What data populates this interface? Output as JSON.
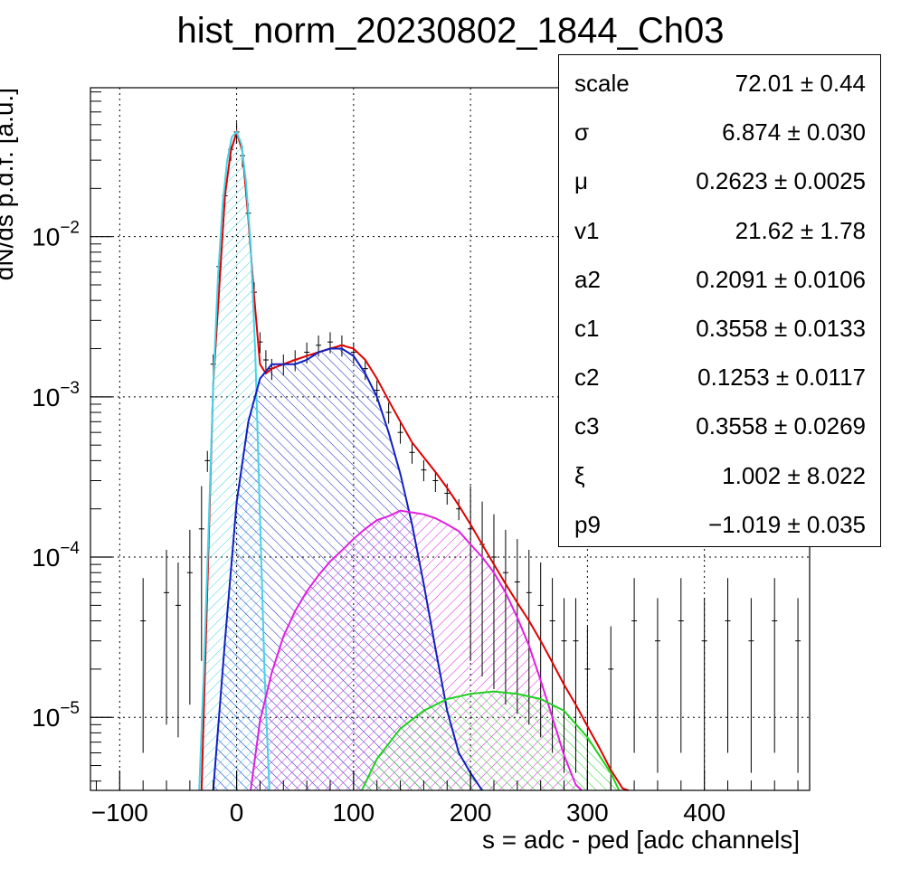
{
  "chart_data": {
    "type": "histogram",
    "title": "hist_norm_20230802_1844_Ch03",
    "xlabel": "s = adc - ped [adc channels]",
    "ylabel": "dN/ds p.d.f. [a.u.]",
    "xlim": [
      -125,
      490
    ],
    "ylim": [
      3.5e-06,
      0.085
    ],
    "yscale": "log",
    "grid": true,
    "x_ticks": [
      "−100",
      "0",
      "100",
      "200",
      "300",
      "400"
    ],
    "x_tick_values": [
      -100,
      0,
      100,
      200,
      300,
      400
    ],
    "y_ticks": [
      {
        "value": 1e-05,
        "base": "10",
        "exp": "−5"
      },
      {
        "value": 0.0001,
        "base": "10",
        "exp": "−4"
      },
      {
        "value": 0.001,
        "base": "10",
        "exp": "−3"
      },
      {
        "value": 0.01,
        "base": "10",
        "exp": "−2"
      }
    ],
    "histogram": {
      "color": "#000000",
      "x": [
        -80,
        -60,
        -50,
        -40,
        -30,
        -25,
        -20,
        -15,
        -10,
        -5,
        0,
        5,
        10,
        15,
        20,
        25,
        30,
        40,
        50,
        60,
        70,
        80,
        90,
        100,
        110,
        120,
        130,
        140,
        150,
        160,
        170,
        180,
        190,
        200,
        210,
        220,
        230,
        240,
        250,
        260,
        270,
        280,
        290,
        300,
        320,
        340,
        360,
        380,
        400,
        420,
        440,
        460,
        480
      ],
      "y": [
        4e-05,
        6e-05,
        5e-05,
        8e-05,
        0.00015,
        0.0004,
        0.0016,
        0.0065,
        0.018,
        0.035,
        0.045,
        0.032,
        0.014,
        0.0045,
        0.0022,
        0.0017,
        0.0015,
        0.0016,
        0.0017,
        0.0019,
        0.0021,
        0.0022,
        0.0021,
        0.0019,
        0.0015,
        0.0011,
        0.0008,
        0.0006,
        0.00045,
        0.00035,
        0.0003,
        0.00025,
        0.0002,
        0.00015,
        0.00012,
        0.0001,
        8e-05,
        7e-05,
        6e-05,
        5e-05,
        4e-05,
        3e-05,
        3e-05,
        2e-05,
        2e-05,
        4e-05,
        3e-05,
        4e-05,
        3e-05,
        4e-05,
        3e-05,
        4e-05,
        3e-05
      ]
    },
    "curves": [
      {
        "color": "#e00000",
        "hatch": false,
        "x": [
          -30,
          -20,
          -10,
          -5,
          0,
          5,
          10,
          15,
          20,
          25,
          30,
          40,
          50,
          60,
          70,
          80,
          90,
          100,
          110,
          120,
          130,
          140,
          150,
          160,
          170,
          180,
          190,
          200,
          210,
          220,
          230,
          240,
          250,
          260,
          270,
          280,
          290,
          300,
          310,
          320,
          330,
          335
        ],
        "y": [
          3.5e-06,
          0.0012,
          0.018,
          0.034,
          0.045,
          0.034,
          0.013,
          0.0042,
          0.0016,
          0.0014,
          0.0015,
          0.0016,
          0.0017,
          0.0018,
          0.0019,
          0.002,
          0.0021,
          0.002,
          0.0017,
          0.0013,
          0.00095,
          0.0007,
          0.00052,
          0.00042,
          0.00034,
          0.00027,
          0.00021,
          0.00016,
          0.00012,
          9e-05,
          6.8e-05,
          5.2e-05,
          4e-05,
          3e-05,
          2.2e-05,
          1.6e-05,
          1.2e-05,
          8.8e-06,
          6.5e-06,
          4.7e-06,
          3.6e-06,
          3.5e-06
        ]
      },
      {
        "color": "#45d4e6",
        "hatch": true,
        "x": [
          -32,
          -28,
          -24,
          -20,
          -16,
          -12,
          -8,
          -4,
          0,
          4,
          8,
          12,
          16,
          20,
          24,
          28
        ],
        "y": [
          3.5e-06,
          2e-05,
          0.00015,
          0.0012,
          0.0055,
          0.016,
          0.03,
          0.042,
          0.045,
          0.038,
          0.022,
          0.009,
          0.0018,
          0.00018,
          1.8e-05,
          3.5e-06
        ]
      },
      {
        "color": "#1020c0",
        "hatch": true,
        "x": [
          -20,
          -10,
          0,
          10,
          20,
          30,
          40,
          50,
          60,
          70,
          80,
          90,
          100,
          110,
          120,
          130,
          140,
          150,
          160,
          170,
          180,
          190,
          200,
          210
        ],
        "y": [
          3.5e-06,
          3e-05,
          0.00022,
          0.0007,
          0.0013,
          0.0016,
          0.0016,
          0.0016,
          0.0017,
          0.0019,
          0.002,
          0.002,
          0.0018,
          0.0014,
          0.001,
          0.0006,
          0.00033,
          0.00016,
          6.8e-05,
          2.7e-05,
          1.1e-05,
          6e-06,
          4.5e-06,
          3.5e-06
        ]
      },
      {
        "color": "#e020e0",
        "hatch": true,
        "x": [
          12,
          20,
          30,
          40,
          50,
          60,
          70,
          80,
          90,
          100,
          110,
          120,
          130,
          140,
          150,
          160,
          170,
          180,
          190,
          200,
          210,
          220,
          230,
          240,
          250,
          260,
          270,
          280,
          290,
          295
        ],
        "y": [
          3.5e-06,
          9.5e-06,
          1.9e-05,
          3.2e-05,
          4.6e-05,
          6.1e-05,
          7.7e-05,
          9.4e-05,
          0.00011,
          0.00013,
          0.00015,
          0.00017,
          0.00018,
          0.000195,
          0.00019,
          0.000185,
          0.000175,
          0.00016,
          0.000145,
          0.00012,
          0.0001,
          8e-05,
          6e-05,
          4.2e-05,
          2.8e-05,
          1.7e-05,
          1e-05,
          5.8e-06,
          3.8e-06,
          3.5e-06
        ]
      },
      {
        "color": "#20d020",
        "hatch": true,
        "x": [
          107,
          120,
          140,
          160,
          180,
          200,
          220,
          240,
          260,
          280,
          300,
          320,
          327
        ],
        "y": [
          3.5e-06,
          5.5e-06,
          8.5e-06,
          1.1e-05,
          1.3e-05,
          1.4e-05,
          1.45e-05,
          1.4e-05,
          1.3e-05,
          1.1e-05,
          7.5e-06,
          4.5e-06,
          3.5e-06
        ]
      }
    ]
  },
  "stats": [
    {
      "name": "scale",
      "value": "72.01 ± 0.44"
    },
    {
      "name": "σ",
      "value": "6.874 ± 0.030"
    },
    {
      "name": "μ",
      "value": "0.2623 ± 0.0025"
    },
    {
      "name": "v1",
      "value": "21.62 ± 1.78"
    },
    {
      "name": "a2",
      "value": "0.2091 ± 0.0106"
    },
    {
      "name": "c1",
      "value": "0.3558 ± 0.0133"
    },
    {
      "name": "c2",
      "value": "0.1253 ± 0.0117"
    },
    {
      "name": "c3",
      "value": "0.3558 ± 0.0269"
    },
    {
      "name": "ξ",
      "value": "1.002 ± 8.022"
    },
    {
      "name": "p9",
      "value": "−1.019 ± 0.035"
    }
  ]
}
